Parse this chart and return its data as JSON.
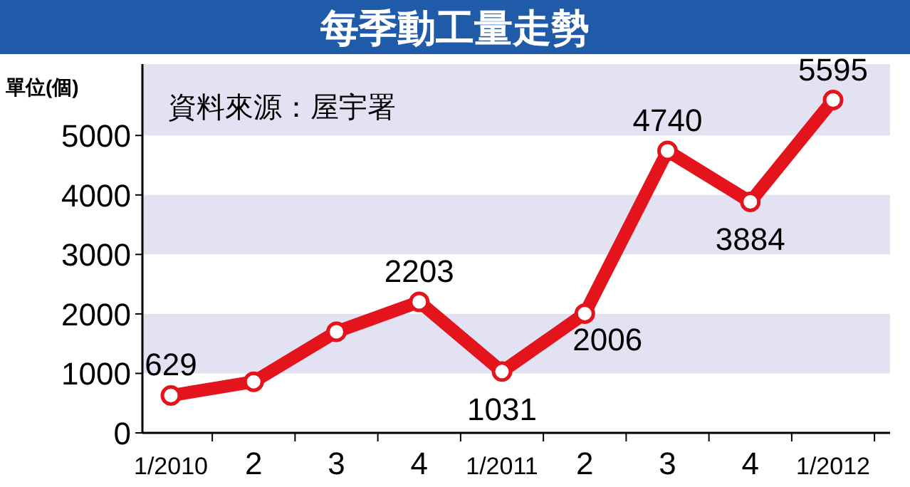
{
  "chart_data": {
    "type": "line",
    "title": "每季動工量走勢",
    "ylabel": "單位(個)",
    "annotations": [
      "資料來源：屋宇署"
    ],
    "categories": [
      "1/2010",
      "2",
      "3",
      "4",
      "1/2011",
      "2",
      "3",
      "4",
      "1/2012"
    ],
    "series": [
      {
        "color": "#e3141c",
        "values": [
          629,
          860,
          1700,
          2203,
          1031,
          2006,
          4740,
          3884,
          5595
        ],
        "value_labels": [
          "629",
          null,
          null,
          "2203",
          "1031",
          "2006",
          "4740",
          "3884",
          "5595"
        ]
      }
    ],
    "ylim": [
      0,
      6200
    ],
    "yticks": [
      0,
      1000,
      2000,
      3000,
      4000,
      5000
    ],
    "bands": [
      {
        "axis": "y",
        "from": 1000,
        "to": 2000,
        "color": "#e2e2f3"
      },
      {
        "axis": "y",
        "from": 3000,
        "to": 4000,
        "color": "#e2e2f3"
      },
      {
        "axis": "y",
        "from": 5000,
        "to": 6200,
        "color": "#e2e2f3"
      }
    ],
    "marker": "circle",
    "line_style": "solid",
    "grid": false
  }
}
